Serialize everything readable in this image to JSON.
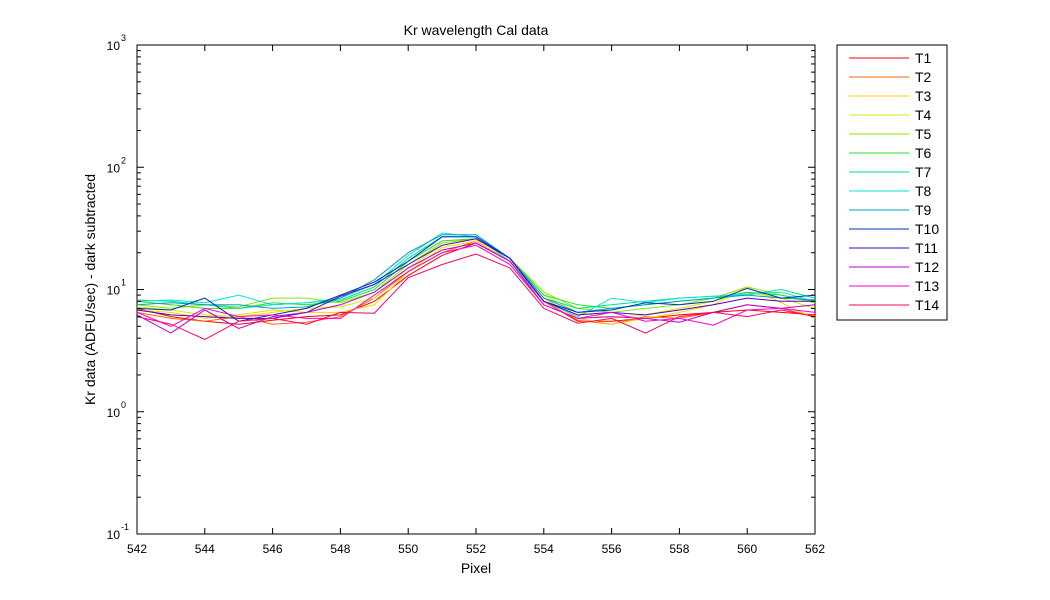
{
  "chart_data": {
    "type": "line",
    "title": "Kr wavelength Cal data",
    "xlabel": "Pixel",
    "ylabel": "Kr data (ADFU/sec) - dark subtracted",
    "xlim": [
      542,
      562
    ],
    "ylim": [
      0.1,
      1000
    ],
    "yscale": "log",
    "grid": false,
    "legend_position": "outside-right",
    "x_ticks": [
      "542",
      "544",
      "546",
      "548",
      "550",
      "552",
      "554",
      "556",
      "558",
      "560",
      "562"
    ],
    "y_ticks": [
      {
        "base": "10",
        "exp": "-1"
      },
      {
        "base": "10",
        "exp": "0"
      },
      {
        "base": "10",
        "exp": "1"
      },
      {
        "base": "10",
        "exp": "2"
      },
      {
        "base": "10",
        "exp": "3"
      }
    ],
    "x": [
      542,
      543,
      544,
      545,
      546,
      547,
      548,
      549,
      550,
      551,
      552,
      553,
      554,
      555,
      556,
      557,
      558,
      559,
      560,
      561,
      562
    ],
    "series": [
      {
        "name": "T1",
        "color": "#ff0000",
        "values": [
          7.0,
          6.0,
          5.5,
          5.2,
          5.6,
          6.0,
          6.2,
          8.0,
          13.0,
          19.0,
          24.0,
          17.0,
          8.0,
          5.5,
          5.5,
          5.8,
          6.2,
          6.5,
          6.8,
          6.5,
          6.2
        ]
      },
      {
        "name": "T2",
        "color": "#ff6a00",
        "values": [
          6.5,
          5.8,
          5.5,
          6.0,
          5.2,
          5.4,
          6.0,
          8.5,
          14.0,
          20.0,
          25.0,
          17.0,
          8.0,
          5.6,
          5.2,
          6.0,
          5.8,
          6.5,
          7.5,
          7.0,
          6.0
        ]
      },
      {
        "name": "T3",
        "color": "#ffd000",
        "values": [
          6.8,
          6.5,
          5.8,
          6.2,
          6.8,
          6.5,
          6.5,
          7.5,
          14.0,
          22.0,
          25.0,
          17.0,
          8.5,
          5.8,
          5.2,
          5.8,
          6.5,
          7.5,
          10.5,
          7.8,
          5.8
        ]
      },
      {
        "name": "T4",
        "color": "#d4e800",
        "values": [
          7.2,
          6.8,
          6.2,
          6.0,
          6.5,
          7.0,
          7.2,
          8.5,
          15.0,
          23.0,
          26.0,
          18.0,
          9.0,
          6.5,
          5.8,
          6.2,
          7.0,
          8.0,
          9.5,
          8.5,
          7.0
        ]
      },
      {
        "name": "T5",
        "color": "#88e800",
        "values": [
          7.5,
          7.0,
          7.5,
          7.2,
          8.5,
          8.5,
          7.8,
          9.5,
          16.0,
          24.0,
          26.0,
          18.0,
          9.5,
          7.0,
          6.5,
          7.0,
          7.5,
          8.5,
          10.5,
          9.0,
          7.8
        ]
      },
      {
        "name": "T6",
        "color": "#2edb2e",
        "values": [
          8.0,
          7.5,
          7.0,
          7.0,
          7.8,
          7.5,
          8.0,
          10.0,
          17.0,
          25.0,
          26.0,
          18.0,
          9.0,
          7.5,
          7.0,
          7.5,
          8.0,
          8.5,
          9.5,
          9.0,
          8.0
        ]
      },
      {
        "name": "T7",
        "color": "#00e08a",
        "values": [
          8.2,
          8.0,
          7.5,
          7.0,
          7.5,
          7.8,
          8.2,
          10.5,
          18.0,
          27.0,
          27.0,
          18.0,
          8.5,
          7.0,
          7.5,
          8.0,
          8.5,
          8.8,
          9.0,
          10.0,
          8.5
        ]
      },
      {
        "name": "T8",
        "color": "#00e8d4",
        "values": [
          8.0,
          8.2,
          7.8,
          9.0,
          7.5,
          7.8,
          8.5,
          11.0,
          19.0,
          29.0,
          27.0,
          17.0,
          8.0,
          6.0,
          8.5,
          7.8,
          8.5,
          8.8,
          9.2,
          9.5,
          8.0
        ]
      },
      {
        "name": "T9",
        "color": "#00a0c8",
        "values": [
          7.5,
          7.8,
          7.5,
          7.5,
          7.0,
          7.2,
          8.5,
          12.0,
          20.0,
          28.0,
          28.0,
          18.0,
          8.5,
          6.5,
          7.0,
          7.5,
          8.0,
          8.5,
          9.0,
          8.5,
          8.2
        ]
      },
      {
        "name": "T10",
        "color": "#0030c0",
        "values": [
          7.0,
          6.8,
          8.5,
          5.5,
          6.2,
          7.0,
          9.0,
          11.5,
          17.0,
          27.0,
          27.0,
          18.0,
          8.0,
          6.5,
          6.8,
          7.8,
          7.5,
          8.0,
          10.2,
          8.5,
          9.0
        ]
      },
      {
        "name": "T11",
        "color": "#5000c0",
        "values": [
          6.8,
          6.2,
          6.0,
          5.8,
          5.8,
          6.5,
          8.8,
          11.0,
          16.0,
          23.0,
          26.0,
          18.0,
          8.0,
          6.2,
          6.5,
          6.2,
          6.8,
          7.5,
          8.5,
          8.0,
          8.0
        ]
      },
      {
        "name": "T12",
        "color": "#b400d4",
        "values": [
          6.2,
          4.4,
          6.8,
          4.8,
          6.0,
          6.5,
          7.5,
          9.5,
          15.0,
          21.0,
          24.0,
          17.0,
          7.5,
          5.8,
          6.0,
          5.8,
          5.4,
          6.5,
          7.5,
          7.0,
          7.5
        ]
      },
      {
        "name": "T13",
        "color": "#ff00cc",
        "values": [
          6.5,
          5.0,
          7.0,
          6.0,
          6.2,
          5.8,
          5.8,
          9.0,
          14.0,
          20.0,
          23.0,
          16.0,
          7.5,
          5.8,
          6.5,
          5.5,
          5.8,
          5.1,
          6.8,
          7.0,
          6.5
        ]
      },
      {
        "name": "T14",
        "color": "#ff0066",
        "values": [
          6.0,
          5.2,
          3.9,
          5.5,
          5.8,
          5.2,
          6.5,
          6.4,
          12.5,
          16.0,
          19.5,
          15.0,
          7.0,
          5.3,
          5.8,
          4.4,
          6.0,
          6.5,
          6.0,
          6.8,
          6.0
        ]
      }
    ]
  }
}
